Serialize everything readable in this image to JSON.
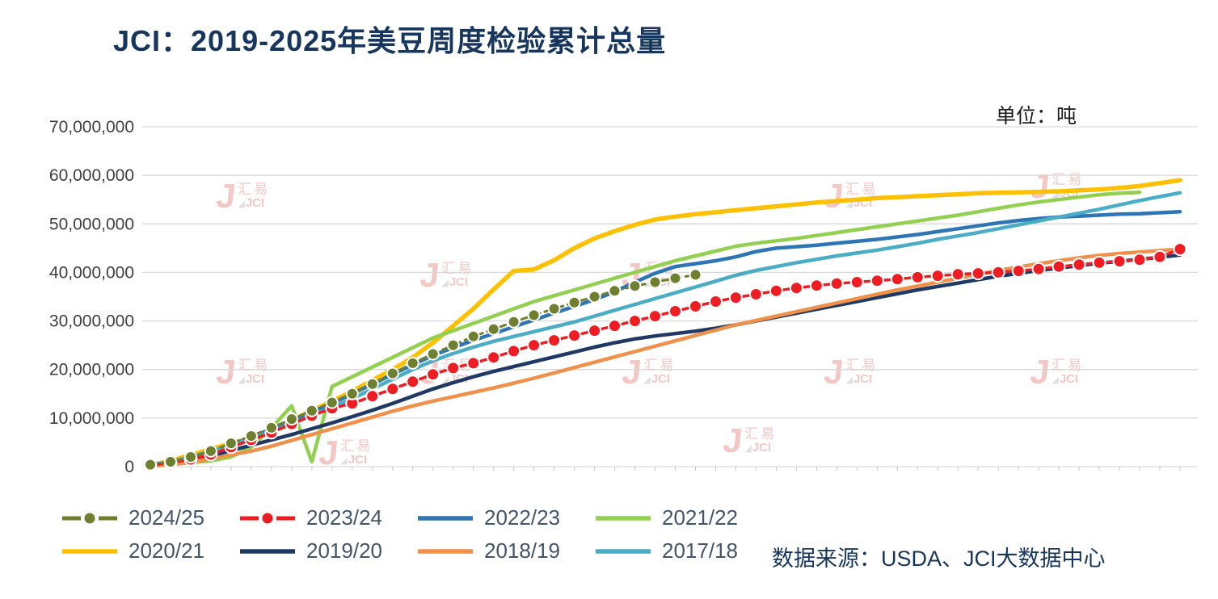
{
  "title": "JCI：2019-2025年美豆周度检验累计总量",
  "unit_label": "单位：吨",
  "source": "数据来源：USDA、JCI大数据中心",
  "watermark": {
    "cn": "汇易",
    "en": "JCI"
  },
  "colors": {
    "title": "#17365D",
    "legend_text": "#44546A",
    "axis_text": "#404040",
    "gridline": "#D9D9D9",
    "watermark": "#EC9B94"
  },
  "chart_data": {
    "type": "line",
    "title": "JCI：2019-2025年美豆周度检验累计总量",
    "ylabel": "吨",
    "ylim": [
      0,
      70000000
    ],
    "y_tick_step": 10000000,
    "y_tick_labels": [
      "0",
      "10,000,000",
      "20,000,000",
      "30,000,000",
      "40,000,000",
      "50,000,000",
      "60,000,000",
      "70,000,000"
    ],
    "x_description": "week of marketing year (1-52), x tick marks shown without labels",
    "weeks": 52,
    "grid": "horizontal",
    "legend_position": "bottom",
    "value_multiplier": 1000000,
    "values_unit": "million tons (multiply by value_multiplier for tons)",
    "legend_rows": [
      [
        "2024/25",
        "2023/24",
        "2022/23",
        "2021/22"
      ],
      [
        "2020/21",
        "2019/20",
        "2018/19",
        "2017/18"
      ]
    ],
    "series": [
      {
        "name": "2024/25",
        "color": "#6E7F2F",
        "width": 3,
        "marker": true,
        "dashed": true,
        "values": [
          0.4,
          1.0,
          2.0,
          3.2,
          4.8,
          6.3,
          8.0,
          9.8,
          11.5,
          13.2,
          15.0,
          17.0,
          19.2,
          21.3,
          23.2,
          25.0,
          26.8,
          28.3,
          29.8,
          31.2,
          32.5,
          33.8,
          35.0,
          36.2,
          37.2,
          38.0,
          38.8,
          39.5
        ]
      },
      {
        "name": "2023/24",
        "color": "#EE1D23",
        "width": 3.5,
        "marker": true,
        "dashed": false,
        "values": [
          0.3,
          0.8,
          1.5,
          2.5,
          4.0,
          5.5,
          7.0,
          8.8,
          10.5,
          12.0,
          13.0,
          14.5,
          16.0,
          17.5,
          19.0,
          20.3,
          21.3,
          22.5,
          23.8,
          25.0,
          26.0,
          27.0,
          28.0,
          29.0,
          30.0,
          31.0,
          32.0,
          33.0,
          34.0,
          34.8,
          35.5,
          36.2,
          36.8,
          37.3,
          37.7,
          38.0,
          38.3,
          38.6,
          39.0,
          39.3,
          39.6,
          39.8,
          40.0,
          40.3,
          40.7,
          41.2,
          41.6,
          42.0,
          42.3,
          42.6,
          43.2,
          44.8
        ]
      },
      {
        "name": "2022/23",
        "color": "#2E75B6",
        "width": 4.5,
        "marker": false,
        "dashed": false,
        "values": [
          0.3,
          0.9,
          1.8,
          3.0,
          4.5,
          6.0,
          7.8,
          9.5,
          11.3,
          13.0,
          15.0,
          17.0,
          19.0,
          21.0,
          22.9,
          24.5,
          26.0,
          27.4,
          28.8,
          30.2,
          31.6,
          33.0,
          34.4,
          36.0,
          38.0,
          39.8,
          41.2,
          41.8,
          42.4,
          43.2,
          44.3,
          45.0,
          45.3,
          45.6,
          46.0,
          46.4,
          46.8,
          47.3,
          47.8,
          48.4,
          49.0,
          49.6,
          50.2,
          50.7,
          51.1,
          51.4,
          51.6,
          51.8,
          52.0,
          52.1,
          52.3,
          52.5
        ]
      },
      {
        "name": "2021/22",
        "color": "#92D050",
        "width": 4.5,
        "marker": false,
        "dashed": false,
        "values": [
          0.2,
          0.5,
          0.8,
          1.2,
          2.0,
          4.0,
          8.0,
          12.5,
          1.0,
          16.5,
          18.5,
          20.5,
          22.5,
          24.5,
          26.5,
          28.0,
          29.5,
          31.0,
          32.5,
          34.0,
          35.2,
          36.4,
          37.6,
          38.8,
          40.0,
          41.2,
          42.4,
          43.4,
          44.4,
          45.4,
          46.0,
          46.5,
          47.0,
          47.6,
          48.2,
          48.8,
          49.4,
          50.0,
          50.6,
          51.2,
          51.8,
          52.5,
          53.2,
          53.9,
          54.5,
          55.0,
          55.5,
          56.0,
          56.3,
          56.5
        ]
      },
      {
        "name": "2020/21",
        "color": "#FFC000",
        "width": 5.5,
        "marker": false,
        "dashed": false,
        "values": [
          0.3,
          1.2,
          2.4,
          3.6,
          4.8,
          5.8,
          7.5,
          9.5,
          11.5,
          13.5,
          15.5,
          17.8,
          20.0,
          22.5,
          25.5,
          29.0,
          32.5,
          36.5,
          40.3,
          40.6,
          42.5,
          45.0,
          47.0,
          48.5,
          49.8,
          50.9,
          51.5,
          52.0,
          52.4,
          52.8,
          53.2,
          53.6,
          54.0,
          54.4,
          54.7,
          55.0,
          55.3,
          55.5,
          55.7,
          55.9,
          56.1,
          56.3,
          56.4,
          56.5,
          56.6,
          56.7,
          56.9,
          57.1,
          57.4,
          57.8,
          58.4,
          59.0
        ]
      },
      {
        "name": "2019/20",
        "color": "#1F3864",
        "width": 4.5,
        "marker": false,
        "dashed": false,
        "values": [
          0.2,
          0.6,
          1.2,
          2.2,
          3.3,
          4.4,
          5.5,
          6.6,
          7.8,
          9.0,
          10.3,
          11.6,
          13.0,
          14.5,
          16.0,
          17.3,
          18.5,
          19.6,
          20.6,
          21.6,
          22.6,
          23.6,
          24.6,
          25.5,
          26.3,
          26.9,
          27.4,
          27.9,
          28.5,
          29.2,
          30.0,
          30.8,
          31.6,
          32.4,
          33.2,
          34.0,
          34.8,
          35.6,
          36.4,
          37.1,
          37.8,
          38.5,
          39.2,
          39.8,
          40.4,
          40.9,
          41.4,
          41.9,
          42.3,
          42.7,
          43.1,
          43.6
        ]
      },
      {
        "name": "2018/19",
        "color": "#F0914B",
        "width": 4.5,
        "marker": false,
        "dashed": false,
        "values": [
          0.1,
          0.4,
          0.9,
          1.6,
          2.4,
          3.2,
          4.2,
          5.4,
          6.6,
          7.8,
          9.0,
          10.2,
          11.4,
          12.5,
          13.5,
          14.4,
          15.3,
          16.2,
          17.2,
          18.2,
          19.3,
          20.4,
          21.5,
          22.6,
          23.7,
          24.8,
          25.9,
          27.0,
          28.1,
          29.2,
          30.1,
          31.0,
          31.9,
          32.8,
          33.7,
          34.6,
          35.5,
          36.4,
          37.2,
          38.0,
          38.8,
          39.6,
          40.4,
          41.1,
          41.8,
          42.4,
          43.0,
          43.5,
          43.9,
          44.2,
          44.5,
          44.8
        ]
      },
      {
        "name": "2017/18",
        "color": "#4BACC6",
        "width": 4.5,
        "marker": false,
        "dashed": false,
        "values": [
          0.3,
          1.0,
          2.0,
          3.2,
          4.5,
          5.8,
          7.2,
          8.8,
          10.5,
          12.2,
          14.0,
          16.0,
          18.0,
          20.0,
          21.8,
          23.3,
          24.6,
          25.8,
          26.8,
          27.8,
          28.8,
          29.8,
          31.0,
          32.2,
          33.4,
          34.6,
          35.8,
          37.0,
          38.2,
          39.4,
          40.4,
          41.2,
          42.0,
          42.7,
          43.4,
          44.0,
          44.6,
          45.3,
          46.0,
          46.8,
          47.5,
          48.2,
          49.0,
          49.8,
          50.6,
          51.4,
          52.2,
          53.0,
          53.9,
          54.8,
          55.6,
          56.4
        ]
      }
    ]
  }
}
